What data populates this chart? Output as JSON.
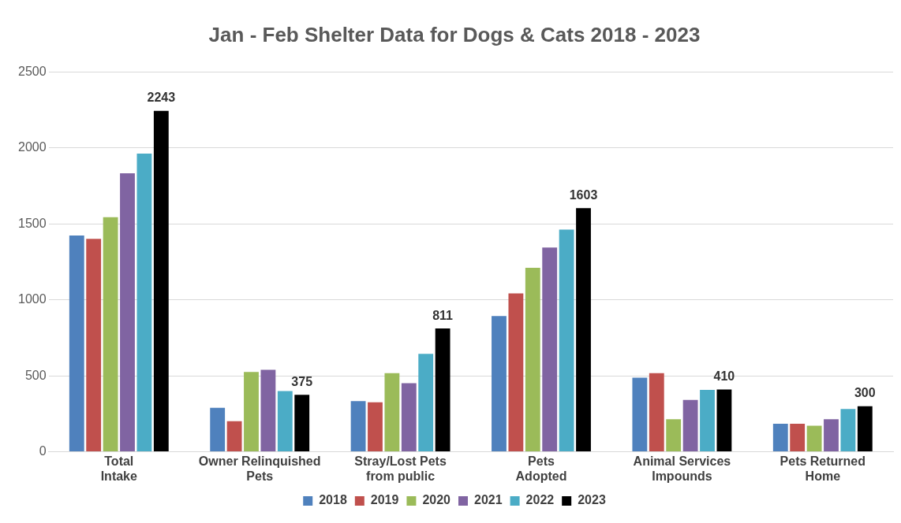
{
  "chart_data": {
    "type": "bar",
    "title": "Jan - Feb Shelter Data for Dogs & Cats 2018 - 2023",
    "categories": [
      "Total Intake",
      "Owner Relinquished Pets",
      "Stray/Lost Pets from public",
      "Pets Adopted",
      "Animal Services Impounds",
      "Pets Returned Home"
    ],
    "series": [
      {
        "name": "2018",
        "color": "#4f81bd",
        "values": [
          1423,
          289,
          333,
          893,
          488,
          184
        ]
      },
      {
        "name": "2019",
        "color": "#c0504d",
        "values": [
          1401,
          201,
          326,
          1042,
          517,
          184
        ]
      },
      {
        "name": "2020",
        "color": "#9bbb59",
        "values": [
          1543,
          525,
          517,
          1211,
          214,
          171
        ]
      },
      {
        "name": "2021",
        "color": "#8064a2",
        "values": [
          1832,
          539,
          451,
          1344,
          341,
          214
        ]
      },
      {
        "name": "2022",
        "color": "#4bacc6",
        "values": [
          1962,
          399,
          644,
          1462,
          407,
          282
        ]
      },
      {
        "name": "2023",
        "color": "#000000",
        "values": [
          2243,
          375,
          811,
          1603,
          410,
          300
        ],
        "value_labels": [
          "2243",
          "375",
          "811",
          "1603",
          "410",
          "300"
        ]
      }
    ],
    "ylim": [
      0,
      2500
    ],
    "yticks": [
      0,
      500,
      1000,
      1500,
      2000,
      2500
    ],
    "grid": "y",
    "legend": "bottom"
  }
}
